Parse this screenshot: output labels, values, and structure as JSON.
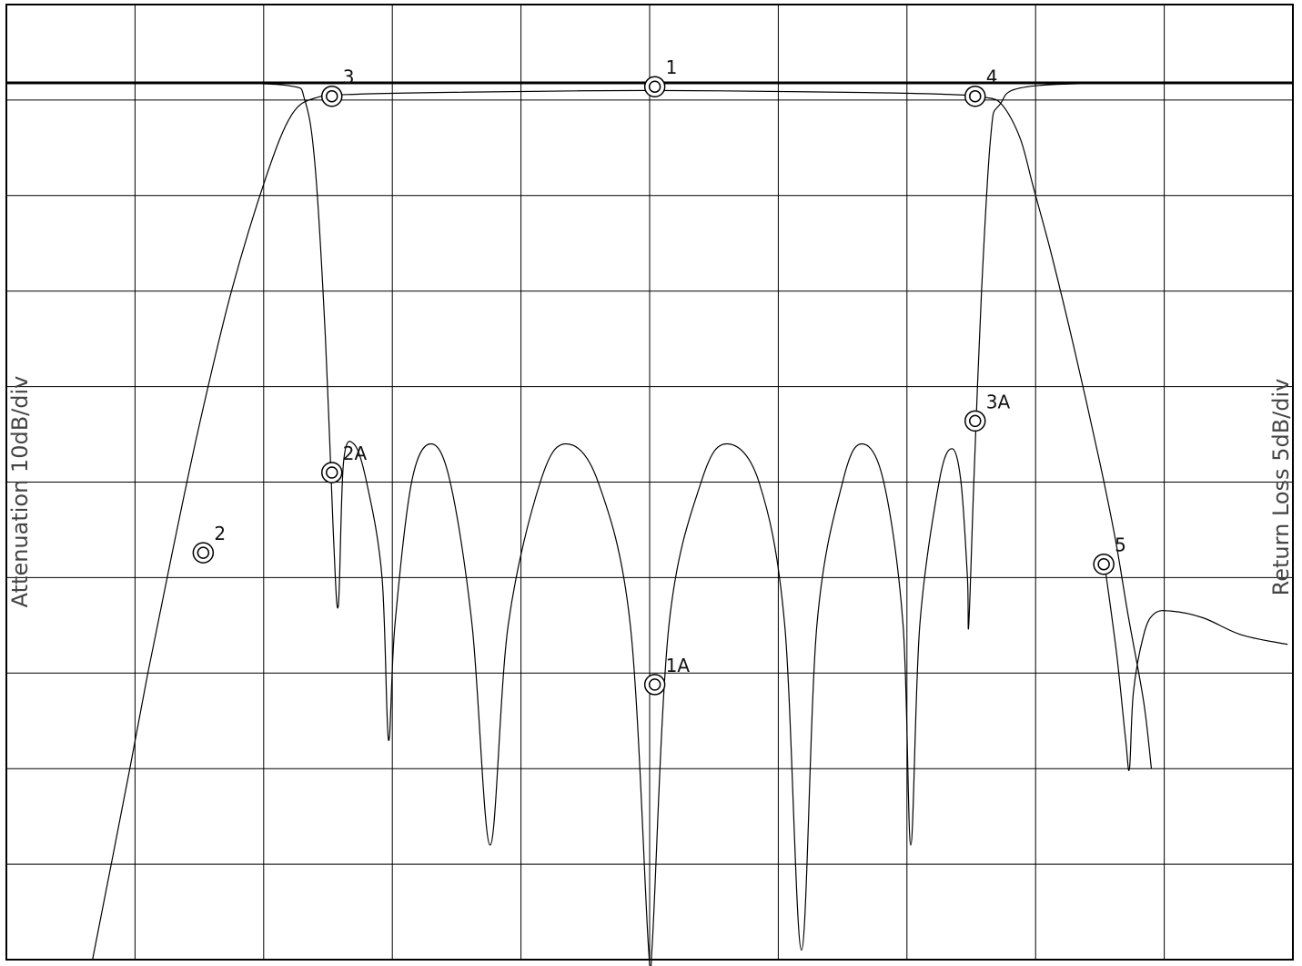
{
  "chart_data": {
    "type": "line",
    "title": "",
    "y_left_label": "Attenuation 10dB/div",
    "y_right_label": "Return Loss 5dB/div",
    "grid": true,
    "grid_divisions": {
      "x": 10,
      "y": 10
    },
    "x_range": [
      0,
      10
    ],
    "y_range": [
      0,
      10
    ],
    "reference_line_y": 9.18,
    "series": [
      {
        "values": [
          [
            0.67,
            0.0
          ],
          [
            0.96,
            2.0
          ],
          [
            1.1,
            3.0
          ],
          [
            1.28,
            4.2
          ],
          [
            1.5,
            5.6
          ],
          [
            1.75,
            7.0
          ],
          [
            2.02,
            8.2
          ],
          [
            2.22,
            8.85
          ],
          [
            2.42,
            9.03
          ],
          [
            2.7,
            9.06
          ],
          [
            3.4,
            9.08
          ],
          [
            5.0,
            9.1
          ],
          [
            6.6,
            9.08
          ],
          [
            7.3,
            9.06
          ],
          [
            7.6,
            9.03
          ],
          [
            7.74,
            8.95
          ],
          [
            7.88,
            8.6
          ],
          [
            7.98,
            8.1
          ],
          [
            8.12,
            7.4
          ],
          [
            8.3,
            6.4
          ],
          [
            8.5,
            5.2
          ],
          [
            8.62,
            4.4
          ],
          [
            8.72,
            3.6
          ],
          [
            8.84,
            2.7
          ],
          [
            8.9,
            2.0
          ]
        ]
      },
      {
        "values": [
          [
            1.6,
            9.18
          ],
          [
            2.2,
            9.15
          ],
          [
            2.32,
            9.0
          ],
          [
            2.4,
            8.3
          ],
          [
            2.48,
            6.5
          ],
          [
            2.54,
            4.5
          ],
          [
            2.58,
            3.7
          ],
          [
            2.62,
            5.2
          ],
          [
            2.7,
            5.4
          ],
          [
            2.8,
            5.0
          ],
          [
            2.92,
            4.0
          ],
          [
            2.97,
            2.3
          ],
          [
            3.02,
            3.5
          ],
          [
            3.15,
            5.0
          ],
          [
            3.3,
            5.4
          ],
          [
            3.45,
            5.0
          ],
          [
            3.62,
            3.5
          ],
          [
            3.76,
            1.2
          ],
          [
            3.9,
            3.5
          ],
          [
            4.15,
            5.0
          ],
          [
            4.35,
            5.4
          ],
          [
            4.6,
            5.0
          ],
          [
            4.85,
            3.5
          ],
          [
            4.99,
            0.15
          ],
          [
            5.02,
            0.15
          ],
          [
            5.15,
            3.5
          ],
          [
            5.4,
            5.0
          ],
          [
            5.6,
            5.4
          ],
          [
            5.85,
            5.0
          ],
          [
            6.05,
            3.5
          ],
          [
            6.18,
            0.1
          ],
          [
            6.3,
            3.5
          ],
          [
            6.5,
            5.0
          ],
          [
            6.65,
            5.4
          ],
          [
            6.82,
            5.0
          ],
          [
            6.97,
            3.5
          ],
          [
            7.03,
            1.2
          ],
          [
            7.1,
            3.5
          ],
          [
            7.25,
            5.0
          ],
          [
            7.35,
            5.35
          ],
          [
            7.42,
            5.0
          ],
          [
            7.47,
            4.0
          ],
          [
            7.48,
            3.5
          ],
          [
            7.52,
            5.0
          ],
          [
            7.58,
            7.0
          ],
          [
            7.65,
            8.6
          ],
          [
            7.72,
            8.95
          ],
          [
            8.0,
            9.15
          ],
          [
            9.4,
            9.18
          ]
        ]
      },
      {
        "values": [
          [
            8.54,
            4.1
          ],
          [
            8.63,
            3.2
          ],
          [
            8.7,
            2.3
          ],
          [
            8.73,
            2.0
          ],
          [
            8.76,
            2.8
          ],
          [
            8.84,
            3.4
          ],
          [
            8.92,
            3.62
          ],
          [
            9.05,
            3.65
          ],
          [
            9.3,
            3.58
          ],
          [
            9.6,
            3.4
          ],
          [
            9.96,
            3.3
          ]
        ]
      }
    ],
    "markers": [
      {
        "label": "1",
        "x": 5.04,
        "y": 9.14
      },
      {
        "label": "1A",
        "x": 5.04,
        "y": 2.88
      },
      {
        "label": "2",
        "x": 1.53,
        "y": 4.26
      },
      {
        "label": "2A",
        "x": 2.53,
        "y": 5.1
      },
      {
        "label": "3",
        "x": 2.53,
        "y": 9.04
      },
      {
        "label": "3A",
        "x": 7.53,
        "y": 5.64
      },
      {
        "label": "4",
        "x": 7.53,
        "y": 9.04
      },
      {
        "label": "5",
        "x": 8.53,
        "y": 4.14
      }
    ]
  }
}
